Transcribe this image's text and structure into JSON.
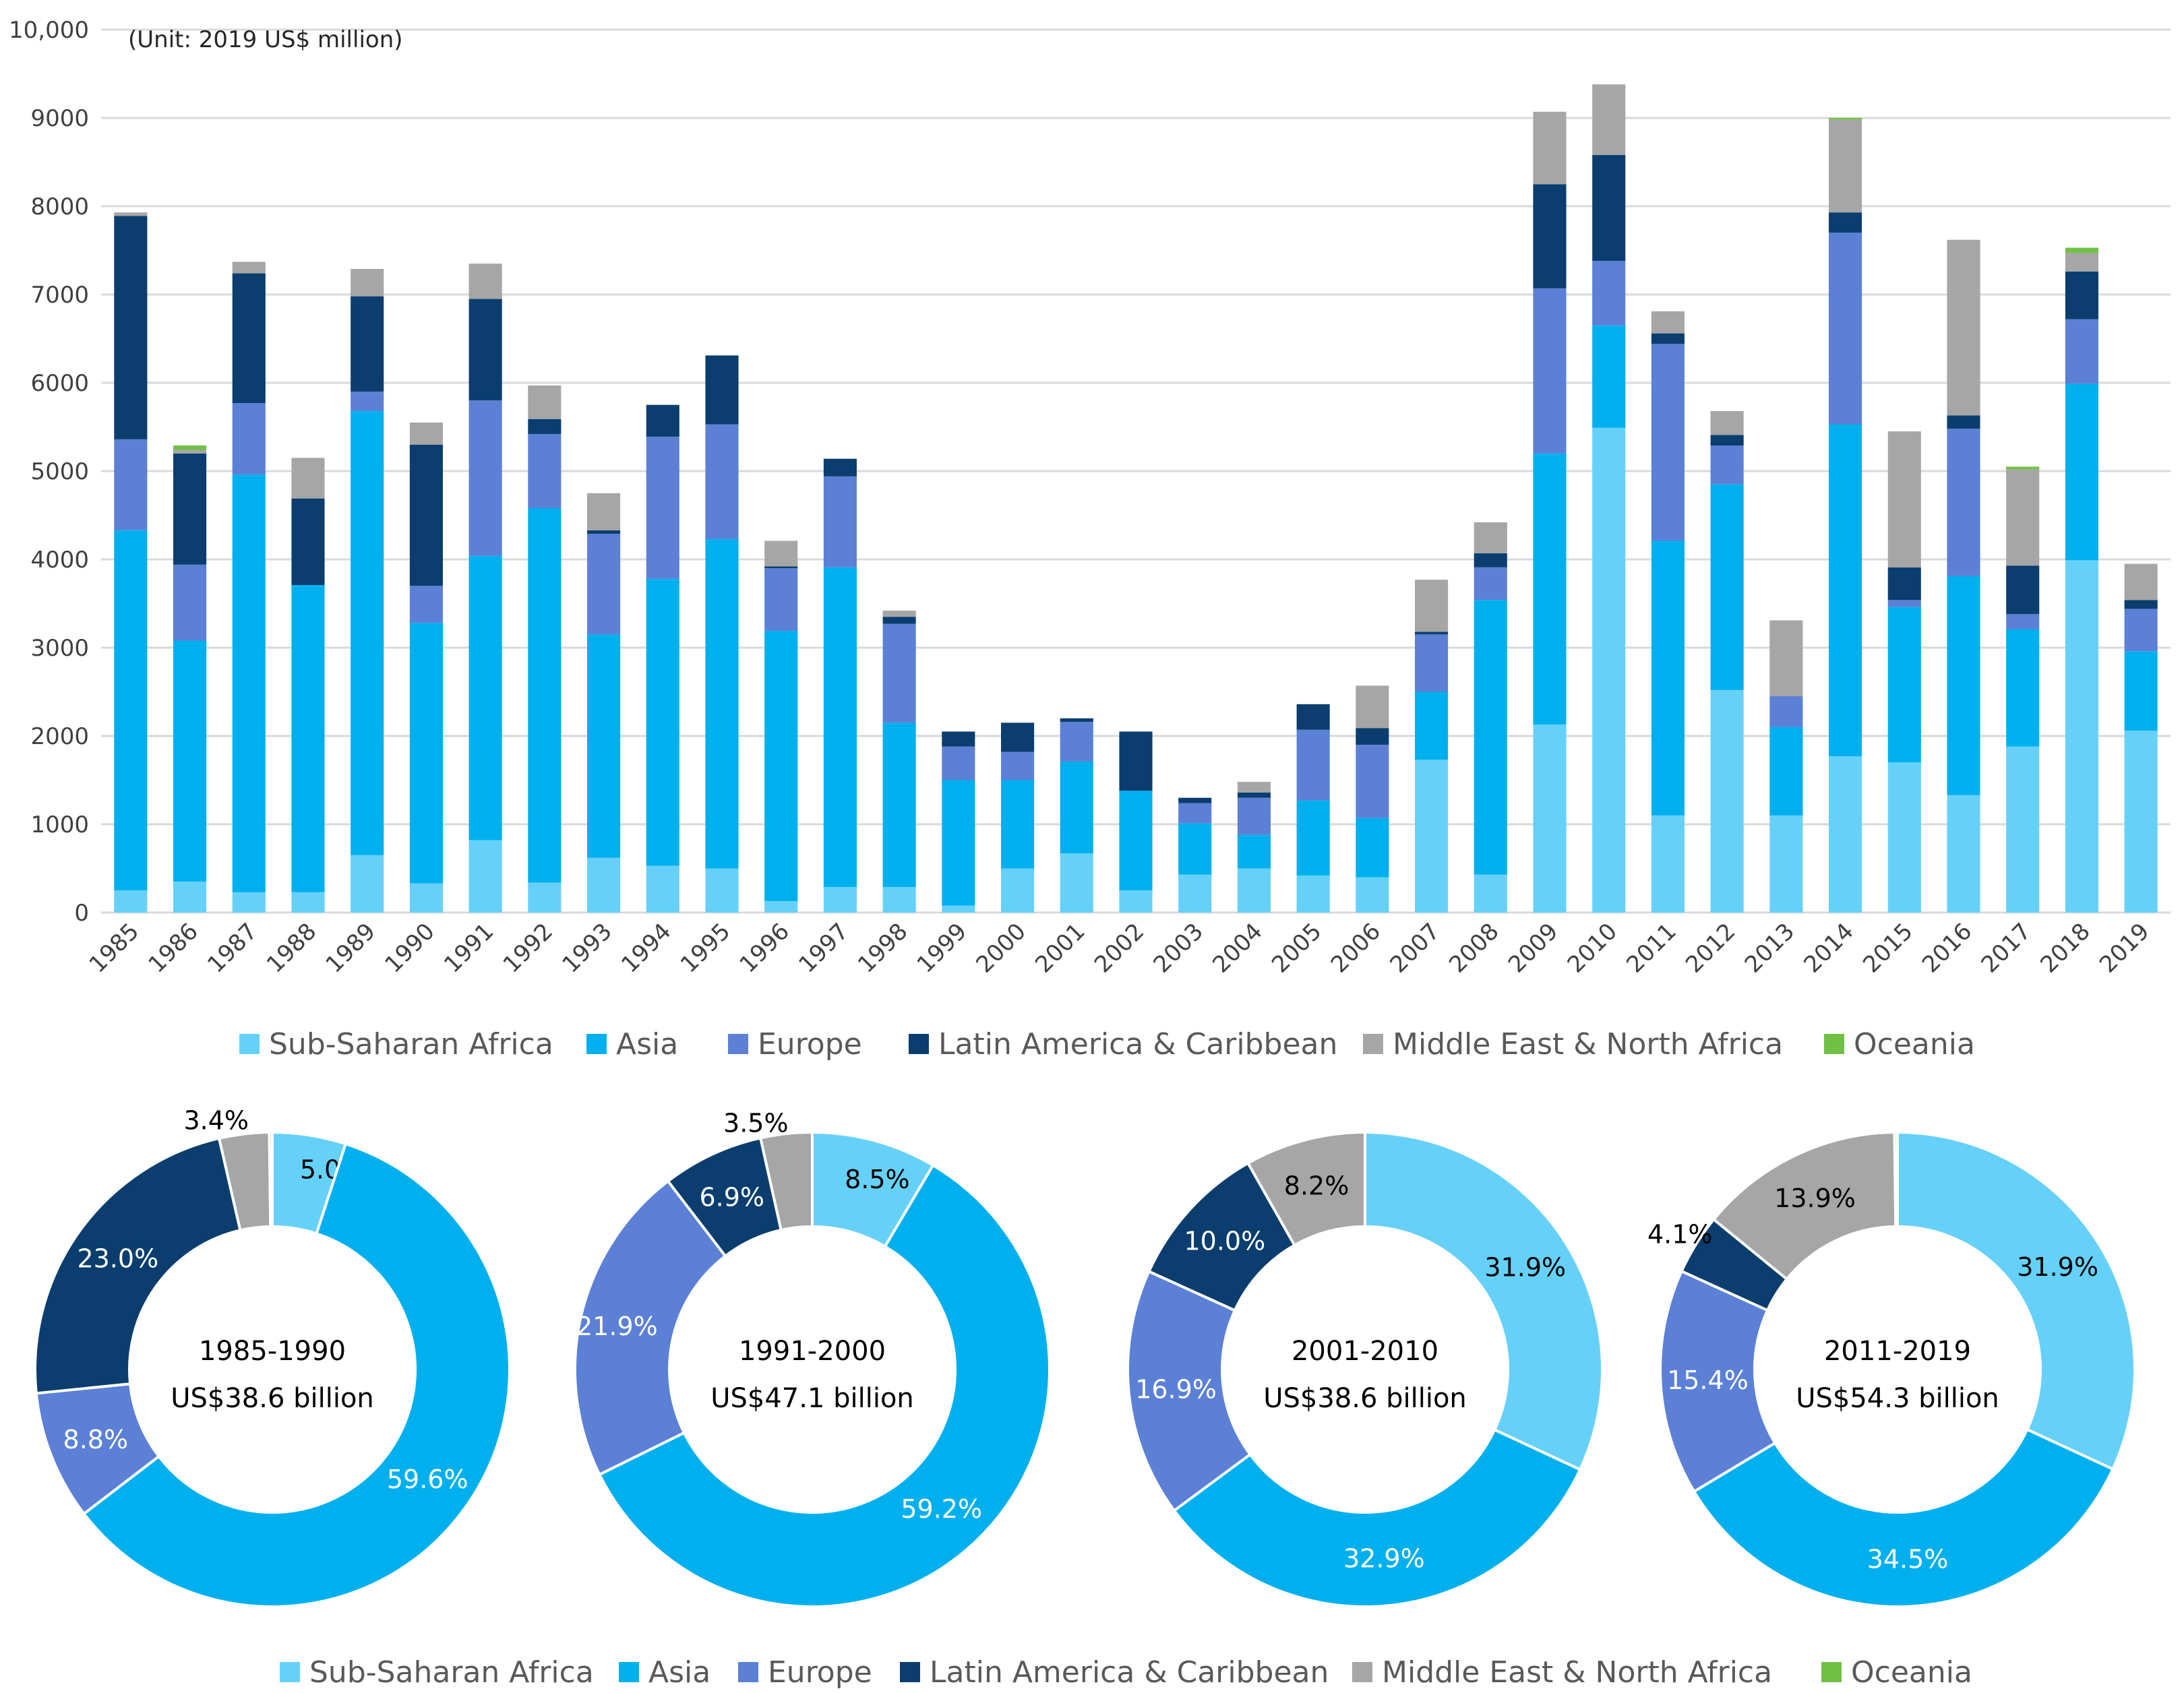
{
  "colors": {
    "Sub-Saharan Africa": "#66d1f8",
    "Asia": "#00b0ee",
    "Europe": "#5b80d6",
    "Latin America & Caribbean": "#0b3e6e",
    "Middle East & North Africa": "#a6a6a6",
    "Oceania": "#70c045"
  },
  "chart_data": [
    {
      "type": "bar",
      "stacked": true,
      "subtitle": "(Unit: 2019 US$ million)",
      "ylim": [
        0,
        10000
      ],
      "yticks": [
        "0",
        "1000",
        "2000",
        "3000",
        "4000",
        "5000",
        "6000",
        "7000",
        "8000",
        "9000",
        "10,000"
      ],
      "grid": true,
      "legend": "bottom",
      "categories": [
        "1985",
        "1986",
        "1987",
        "1988",
        "1989",
        "1990",
        "1991",
        "1992",
        "1993",
        "1994",
        "1995",
        "1996",
        "1997",
        "1998",
        "1999",
        "2000",
        "2001",
        "2002",
        "2003",
        "2004",
        "2005",
        "2006",
        "2007",
        "2008",
        "2009",
        "2010",
        "2011",
        "2012",
        "2013",
        "2014",
        "2015",
        "2016",
        "2017",
        "2018",
        "2019"
      ],
      "series": [
        {
          "name": "Sub-Saharan Africa",
          "values": [
            250,
            350,
            230,
            230,
            650,
            330,
            820,
            340,
            620,
            530,
            500,
            130,
            290,
            290,
            80,
            500,
            670,
            250,
            430,
            500,
            420,
            400,
            1730,
            430,
            2130,
            5490,
            1100,
            2520,
            1100,
            1770,
            1700,
            1330,
            1880,
            3990,
            2060
          ]
        },
        {
          "name": "Asia",
          "values": [
            4080,
            2730,
            4730,
            3480,
            5030,
            2950,
            3220,
            4240,
            2530,
            3250,
            3730,
            3060,
            3620,
            1860,
            1420,
            1000,
            1040,
            1130,
            580,
            380,
            850,
            670,
            770,
            3110,
            3070,
            1160,
            3110,
            2330,
            1000,
            3760,
            1760,
            2480,
            1330,
            2000,
            900
          ]
        },
        {
          "name": "Europe",
          "values": [
            1030,
            860,
            810,
            0,
            220,
            420,
            1760,
            840,
            1140,
            1610,
            1300,
            710,
            1030,
            1120,
            380,
            320,
            450,
            0,
            230,
            420,
            800,
            830,
            650,
            370,
            1870,
            730,
            2230,
            440,
            350,
            2170,
            80,
            1670,
            170,
            730,
            480
          ]
        },
        {
          "name": "Latin America & Caribbean",
          "values": [
            2530,
            1260,
            1470,
            980,
            1080,
            1600,
            1150,
            170,
            40,
            360,
            780,
            20,
            200,
            80,
            170,
            330,
            40,
            670,
            60,
            60,
            290,
            190,
            30,
            160,
            1180,
            1200,
            120,
            120,
            0,
            230,
            370,
            150,
            550,
            540,
            100
          ]
        },
        {
          "name": "Middle East & North Africa",
          "values": [
            40,
            40,
            130,
            460,
            310,
            250,
            400,
            380,
            420,
            0,
            0,
            290,
            0,
            70,
            0,
            0,
            0,
            0,
            0,
            120,
            0,
            480,
            590,
            350,
            820,
            800,
            250,
            270,
            860,
            1050,
            1540,
            1990,
            1090,
            210,
            410
          ]
        },
        {
          "name": "Oceania",
          "values": [
            0,
            50,
            0,
            0,
            0,
            0,
            0,
            0,
            0,
            0,
            0,
            0,
            0,
            0,
            0,
            0,
            0,
            0,
            0,
            0,
            0,
            0,
            0,
            0,
            0,
            0,
            0,
            0,
            0,
            20,
            0,
            0,
            30,
            60,
            0
          ]
        }
      ]
    },
    {
      "type": "pie",
      "donut": true,
      "center_label": "1985-1990",
      "center_value": "US$38.6 billion",
      "slices": [
        {
          "name": "Sub-Saharan Africa",
          "value": 5.0,
          "label": "5.0%"
        },
        {
          "name": "Asia",
          "value": 59.6,
          "label": "59.6%"
        },
        {
          "name": "Europe",
          "value": 8.8,
          "label": "8.8%"
        },
        {
          "name": "Latin America & Caribbean",
          "value": 23.0,
          "label": "23.0%"
        },
        {
          "name": "Middle East & North Africa",
          "value": 3.4,
          "label": "3.4%"
        },
        {
          "name": "Oceania",
          "value": 0.2,
          "label": ""
        }
      ]
    },
    {
      "type": "pie",
      "donut": true,
      "center_label": "1991-2000",
      "center_value": "US$47.1 billion",
      "slices": [
        {
          "name": "Sub-Saharan Africa",
          "value": 8.5,
          "label": "8.5%"
        },
        {
          "name": "Asia",
          "value": 59.2,
          "label": "59.2%"
        },
        {
          "name": "Europe",
          "value": 21.9,
          "label": "21.9%"
        },
        {
          "name": "Latin America & Caribbean",
          "value": 6.9,
          "label": "6.9%"
        },
        {
          "name": "Middle East & North Africa",
          "value": 3.5,
          "label": "3.5%"
        }
      ]
    },
    {
      "type": "pie",
      "donut": true,
      "center_label": "2001-2010",
      "center_value": "US$38.6 billion",
      "slices": [
        {
          "name": "Sub-Saharan Africa",
          "value": 31.9,
          "label": "31.9%"
        },
        {
          "name": "Asia",
          "value": 32.9,
          "label": "32.9%"
        },
        {
          "name": "Europe",
          "value": 16.9,
          "label": "16.9%"
        },
        {
          "name": "Latin America & Caribbean",
          "value": 10.0,
          "label": "10.0%"
        },
        {
          "name": "Middle East & North Africa",
          "value": 8.2,
          "label": "8.2%"
        }
      ]
    },
    {
      "type": "pie",
      "donut": true,
      "center_label": "2011-2019",
      "center_value": "US$54.3 billion",
      "slices": [
        {
          "name": "Sub-Saharan Africa",
          "value": 31.9,
          "label": "31.9%"
        },
        {
          "name": "Asia",
          "value": 34.5,
          "label": "34.5%"
        },
        {
          "name": "Europe",
          "value": 15.4,
          "label": "15.4%"
        },
        {
          "name": "Latin America & Caribbean",
          "value": 4.1,
          "label": "4.1%"
        },
        {
          "name": "Middle East & North Africa",
          "value": 13.9,
          "label": "13.9%"
        },
        {
          "name": "Oceania",
          "value": 0.2,
          "label": ""
        }
      ]
    }
  ],
  "legend_items": [
    "Sub-Saharan Africa",
    "Asia",
    "Europe",
    "Latin America & Caribbean",
    "Middle East & North Africa",
    "Oceania"
  ]
}
